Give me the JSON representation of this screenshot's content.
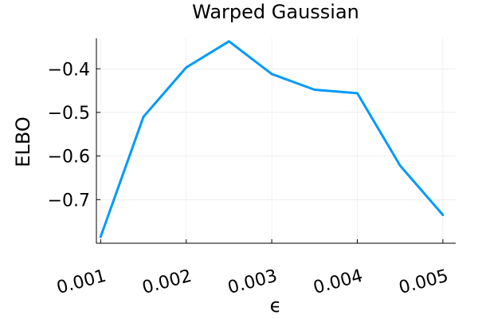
{
  "chart_data": {
    "type": "line",
    "title": "Warped Gaussian",
    "xlabel": "ϵ",
    "ylabel": "ELBO",
    "xlim": [
      0.00095,
      0.00515
    ],
    "ylim": [
      -0.8,
      -0.33
    ],
    "xticks": [
      0.001,
      0.002,
      0.003,
      0.004,
      0.005
    ],
    "xtick_labels": [
      "0.001",
      "0.002",
      "0.003",
      "0.004",
      "0.005"
    ],
    "yticks": [
      -0.7,
      -0.6,
      -0.5,
      -0.4
    ],
    "ytick_labels": [
      "−0.7",
      "−0.6",
      "−0.5",
      "−0.4"
    ],
    "grid": true,
    "legend": "none",
    "series": [
      {
        "color": "#009AFA",
        "x": [
          0.001,
          0.0015,
          0.002,
          0.0025,
          0.003,
          0.0035,
          0.004,
          0.0045,
          0.005
        ],
        "y": [
          -0.785,
          -0.51,
          -0.397,
          -0.337,
          -0.412,
          -0.448,
          -0.456,
          -0.622,
          -0.735
        ]
      }
    ]
  }
}
